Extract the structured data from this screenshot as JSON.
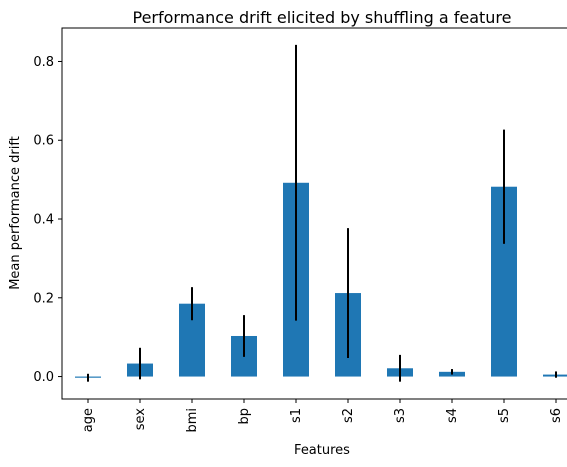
{
  "chart_data": {
    "type": "bar",
    "title": "Performance drift elicited by shuffling a feature",
    "xlabel": "Features",
    "ylabel": "Mean performance drift",
    "categories": [
      "age",
      "sex",
      "bmi",
      "bp",
      "s1",
      "s2",
      "s3",
      "s4",
      "s5",
      "s6"
    ],
    "values": [
      -0.003,
      0.033,
      0.185,
      0.103,
      0.492,
      0.212,
      0.021,
      0.012,
      0.482,
      0.005
    ],
    "error": [
      0.01,
      0.04,
      0.042,
      0.053,
      0.35,
      0.165,
      0.034,
      0.007,
      0.145,
      0.008
    ],
    "yticks": [
      0.0,
      0.2,
      0.4,
      0.6,
      0.8
    ],
    "ytick_labels": [
      "0.0",
      "0.2",
      "0.4",
      "0.6",
      "0.8"
    ],
    "ylim": [
      -0.057,
      0.885
    ],
    "grid": false,
    "bar_color": "#1f77b4",
    "error_color": "#000000"
  }
}
